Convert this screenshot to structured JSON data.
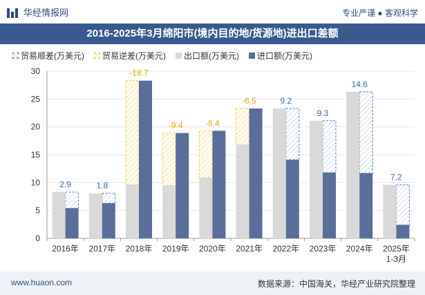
{
  "header": {
    "brand": "华经情报网",
    "tagline": "专业严谨 ● 客观科学"
  },
  "chart_data": {
    "type": "bar",
    "title": "2016-2025年3月绵阳市(境内目的地/货源地)进出口差额",
    "categories": [
      "2016年",
      "2017年",
      "2018年",
      "2019年",
      "2020年",
      "2021年",
      "2022年",
      "2023年",
      "2024年",
      "2025年\n1-3月"
    ],
    "series": [
      {
        "name": "贸易顺差(万美元)",
        "values": [
          2.9,
          1.8,
          null,
          null,
          null,
          null,
          9.2,
          9.3,
          14.6,
          7.2
        ]
      },
      {
        "name": "贸易逆差(万美元)",
        "values": [
          null,
          null,
          -18.7,
          -9.4,
          -8.4,
          -6.5,
          null,
          null,
          null,
          null
        ]
      },
      {
        "name": "出口额(万美元)",
        "values": [
          8.3,
          8.1,
          9.6,
          9.5,
          10.9,
          16.8,
          23.3,
          21.1,
          26.3,
          9.6
        ]
      },
      {
        "name": "进口额(万美元)",
        "values": [
          5.4,
          6.3,
          28.3,
          18.9,
          19.3,
          23.3,
          14.1,
          11.8,
          11.7,
          2.4
        ]
      }
    ],
    "ylim": [
      0,
      30
    ],
    "yticks": [
      0,
      5,
      10,
      15,
      20,
      25,
      30
    ],
    "colors": {
      "export": "#d9d9d9",
      "import": "#5b6e9a",
      "surplus_border": "#5b7bb0",
      "deficit_border": "#f2c94c",
      "surplus_label": "#3a6fb0",
      "deficit_label": "#e6a700"
    },
    "legend_position": "top-left"
  },
  "footer": {
    "site": "www.huaon.com",
    "source": "数据来源：中国海关，华经产业研究院整理"
  }
}
